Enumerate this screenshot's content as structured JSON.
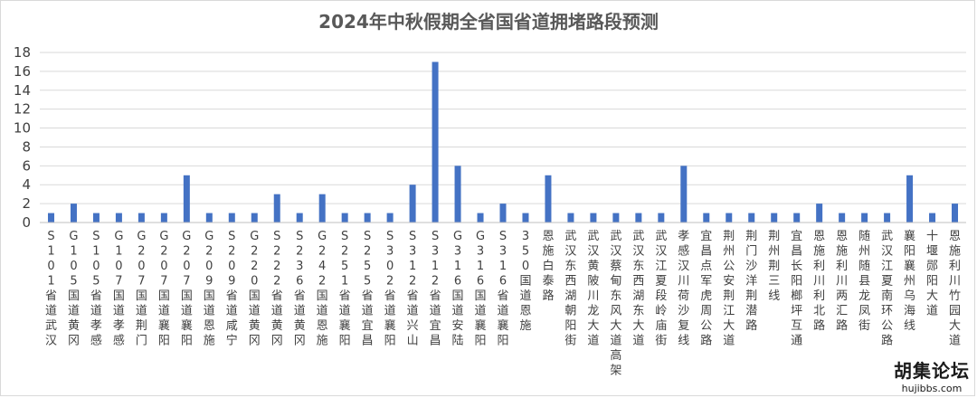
{
  "chart_data": {
    "type": "bar",
    "title": "2024年中秋假期全省国省道拥堵路段预测",
    "xlabel": "",
    "ylabel": "",
    "ylim": [
      0,
      18
    ],
    "yticks": [
      0,
      2,
      4,
      6,
      8,
      10,
      12,
      14,
      16,
      18
    ],
    "grid": true,
    "bar_color": "#4472c4",
    "categories": [
      "S101省道武汉",
      "G105国道黄冈",
      "S105省道孝感",
      "G107国道孝感",
      "G207国道荆门",
      "G207国道襄阳",
      "G207国道襄阳",
      "G209国道恩施",
      "S209省道咸宁",
      "G220国道黄冈",
      "S222省道黄冈",
      "S236省道黄冈",
      "G242国道恩施",
      "S251省道襄阳",
      "S255省道宜昌",
      "S302省道襄阳",
      "S312省道兴山",
      "S312省道宜昌",
      "G316国道安陆",
      "G316国道襄阳",
      "S316省道襄阳",
      "350国道恩施",
      "恩施白泰路",
      "武汉东西湖朝阳街",
      "武汉黄陂川龙大道",
      "武汉蔡甸东风大道高架",
      "武汉东西湖东大道",
      "武汉江夏段岭庙街",
      "孝感汉川荷沙复线",
      "宜昌点军虎周公路",
      "荆州公安荆江大道",
      "荆门沙洋荆潜路",
      "荆州荆三线",
      "宜昌长阳榔坪互通",
      "恩施利川利北路",
      "恩施利川两汇路",
      "随州随县龙凤街",
      "武汉江夏南环公路",
      "襄阳襄州乌海线",
      "十堰郧阳大道",
      "恩施利川竹园大道"
    ],
    "values": [
      1,
      2,
      1,
      1,
      1,
      1,
      5,
      1,
      1,
      1,
      3,
      1,
      3,
      1,
      1,
      1,
      4,
      17,
      6,
      1,
      2,
      1,
      5,
      1,
      1,
      1,
      1,
      1,
      6,
      1,
      1,
      1,
      1,
      1,
      2,
      1,
      1,
      1,
      5,
      1,
      2
    ]
  },
  "watermark": {
    "main": "胡集论坛",
    "sub": "hujibbs.com"
  }
}
